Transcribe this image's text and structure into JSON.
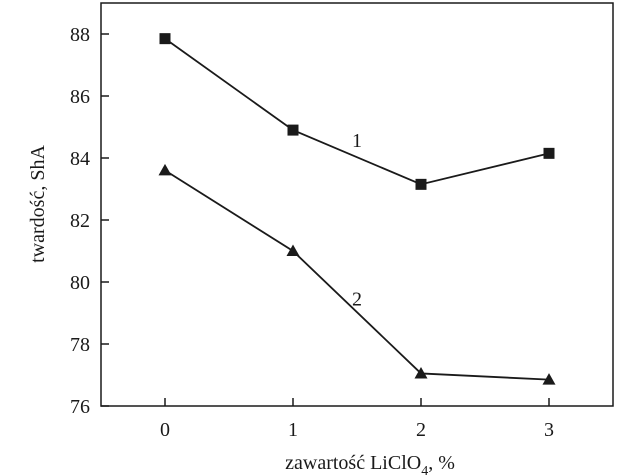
{
  "chart_data": {
    "type": "line",
    "title": "",
    "xlabel": {
      "main": "zawartość LiClO",
      "subscript": "4",
      "suffix": ", %"
    },
    "ylabel": "twardość, ShA",
    "x": [
      0,
      1,
      2,
      3
    ],
    "x_ticks": [
      "0",
      "1",
      "2",
      "3"
    ],
    "y_ticks": [
      "76",
      "78",
      "80",
      "82",
      "84",
      "86",
      "88"
    ],
    "xlim": [
      -0.5,
      3.5
    ],
    "ylim": [
      76,
      89
    ],
    "grid": false,
    "series": [
      {
        "label": "1",
        "marker": "square",
        "values": [
          87.85,
          84.9,
          83.15,
          84.15
        ]
      },
      {
        "label": "2",
        "marker": "triangle",
        "values": [
          83.6,
          81.0,
          77.05,
          76.85
        ]
      }
    ]
  }
}
